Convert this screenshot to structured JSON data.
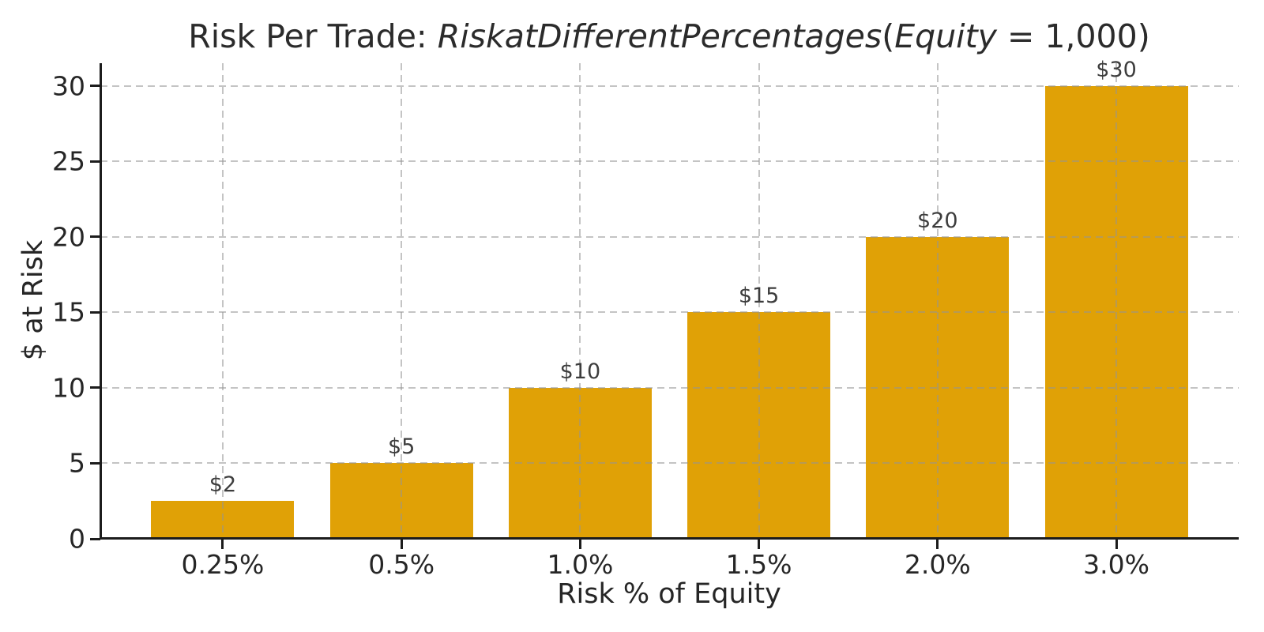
{
  "title": {
    "prefix": "Risk Per Trade: ",
    "func_name": "RiskatDifferentPercentages",
    "open_paren": "(",
    "var_name": "Equity",
    "suffix": " = 1,000)"
  },
  "chart_data": {
    "type": "bar",
    "title": "Risk Per Trade: RiskatDifferentPercentages(Equity = 1,000)",
    "xlabel": "Risk % of Equity",
    "ylabel": "$ at Risk",
    "categories": [
      "0.25%",
      "0.5%",
      "1.0%",
      "1.5%",
      "2.0%",
      "3.0%"
    ],
    "values": [
      2.5,
      5,
      10,
      15,
      20,
      30
    ],
    "bar_labels": [
      "$2",
      "$5",
      "$10",
      "$15",
      "$20",
      "$30"
    ],
    "yticks": [
      0,
      5,
      10,
      15,
      20,
      25,
      30
    ],
    "ylim": [
      0,
      31.5
    ],
    "xlim": [
      -0.685,
      5.685
    ],
    "bar_width_units": 0.8,
    "equity": "1,000",
    "grid": "dashed horizontal and vertical gridlines, drawn above bars",
    "legend": "none",
    "colors": {
      "bar": "#E0A106",
      "grid": "#c9c9c9",
      "spine": "#1c1c1c",
      "text": "#262626",
      "bar_label_text": "#3d3d3d",
      "background": "#ffffff"
    }
  }
}
